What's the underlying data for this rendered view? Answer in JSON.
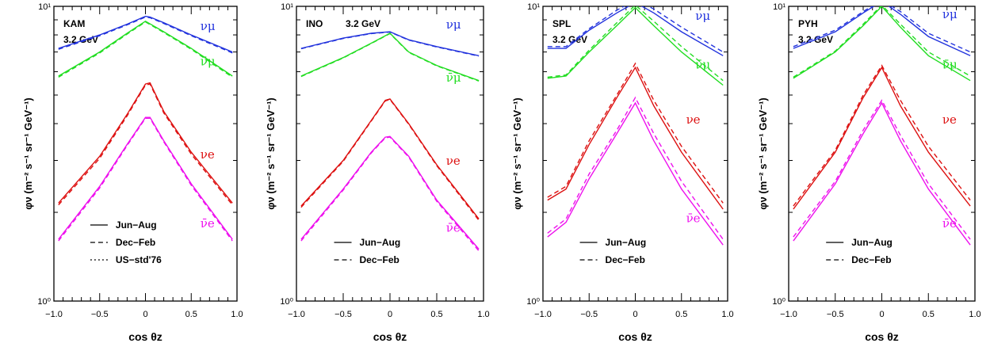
{
  "chart_data": [
    {
      "type": "line",
      "site": "KAM",
      "energy": "3.2 GeV",
      "xlabel": "cos θz",
      "ylabel": "φν (m⁻² s⁻¹ sr⁻¹ GeV⁻¹)",
      "xlim": [
        -1,
        1
      ],
      "ylim": [
        1,
        10
      ],
      "yscale": "log",
      "x_ticks": [
        "−1.0",
        "−0.5",
        "0",
        "0.5",
        "1.0"
      ],
      "y_ticks": [
        "10⁰",
        "10¹"
      ],
      "legend": [
        "Jun−Aug",
        "Dec−Feb",
        "US−std'76"
      ],
      "legend_position": "bottom-center",
      "series": [
        {
          "name": "νμ",
          "color": "#2233dd",
          "style": "solid",
          "x": [
            -0.95,
            -0.5,
            -0.2,
            0,
            0.05,
            0.2,
            0.5,
            0.95
          ],
          "y": [
            7.2,
            8.0,
            8.7,
            9.25,
            9.2,
            8.8,
            8.0,
            7.0
          ]
        },
        {
          "name": "νμ",
          "color": "#2233dd",
          "style": "dashed",
          "x": [
            -0.95,
            -0.5,
            -0.2,
            0,
            0.05,
            0.2,
            0.5,
            0.95
          ],
          "y": [
            7.15,
            7.95,
            8.65,
            9.2,
            9.15,
            8.75,
            7.95,
            6.95
          ]
        },
        {
          "name": "ν̄μ",
          "color": "#22dd22",
          "style": "solid",
          "x": [
            -0.95,
            -0.5,
            -0.2,
            0,
            0.2,
            0.5,
            0.95
          ],
          "y": [
            5.8,
            7.0,
            8.1,
            8.9,
            8.2,
            7.2,
            5.8
          ]
        },
        {
          "name": "ν̄μ",
          "color": "#22dd22",
          "style": "dashed",
          "x": [
            -0.95,
            -0.5,
            -0.2,
            0,
            0.2,
            0.5,
            0.95
          ],
          "y": [
            5.75,
            6.95,
            8.05,
            8.85,
            8.15,
            7.15,
            5.75
          ]
        },
        {
          "name": "νe",
          "color": "#dd1111",
          "style": "solid",
          "x": [
            -0.95,
            -0.5,
            -0.2,
            0,
            0.05,
            0.2,
            0.5,
            0.95
          ],
          "y": [
            2.15,
            3.1,
            4.3,
            5.45,
            5.5,
            4.4,
            3.2,
            2.15
          ]
        },
        {
          "name": "νe",
          "color": "#dd1111",
          "style": "dashed",
          "x": [
            -0.95,
            -0.5,
            -0.2,
            0,
            0.05,
            0.2,
            0.5,
            0.95
          ],
          "y": [
            2.12,
            3.05,
            4.25,
            5.4,
            5.45,
            4.35,
            3.15,
            2.12
          ]
        },
        {
          "name": "ν̄e",
          "color": "#ee11ee",
          "style": "solid",
          "x": [
            -0.95,
            -0.5,
            -0.2,
            0,
            0.05,
            0.2,
            0.5,
            0.95
          ],
          "y": [
            1.62,
            2.45,
            3.4,
            4.2,
            4.2,
            3.5,
            2.5,
            1.62
          ]
        },
        {
          "name": "ν̄e",
          "color": "#ee11ee",
          "style": "dashed",
          "x": [
            -0.95,
            -0.5,
            -0.2,
            0,
            0.05,
            0.2,
            0.5,
            0.95
          ],
          "y": [
            1.6,
            2.42,
            3.37,
            4.17,
            4.17,
            3.47,
            2.47,
            1.6
          ]
        }
      ],
      "curve_labels": [
        {
          "text": "νμ",
          "color": "#2233dd",
          "x": 0.6,
          "y": 8.3
        },
        {
          "text": "ν̄μ",
          "color": "#22dd22",
          "x": 0.6,
          "y": 6.3
        },
        {
          "text": "νe",
          "color": "#dd1111",
          "x": 0.6,
          "y": 3.05
        },
        {
          "text": "ν̄e",
          "color": "#ee11ee",
          "x": 0.6,
          "y": 1.78
        }
      ]
    },
    {
      "type": "line",
      "site": "INO",
      "energy": "3.2 GeV",
      "xlabel": "cos θz",
      "ylabel": "φν (m⁻² s⁻¹ sr⁻¹ GeV⁻¹)",
      "xlim": [
        -1,
        1
      ],
      "ylim": [
        1,
        10
      ],
      "yscale": "log",
      "x_ticks": [
        "−1.0",
        "−0.5",
        "0",
        "0.5",
        "1.0"
      ],
      "y_ticks": [
        "10⁰",
        "10¹"
      ],
      "legend": [
        "Jun−Aug",
        "Dec−Feb"
      ],
      "legend_position": "bottom-center",
      "series": [
        {
          "name": "νμ",
          "color": "#2233dd",
          "style": "solid",
          "x": [
            -0.95,
            -0.5,
            -0.2,
            0,
            0.2,
            0.5,
            0.95
          ],
          "y": [
            7.2,
            7.8,
            8.1,
            8.2,
            7.7,
            7.3,
            6.8
          ]
        },
        {
          "name": "νμ",
          "color": "#2233dd",
          "style": "dashed",
          "x": [
            -0.95,
            -0.5,
            -0.2,
            0,
            0.2,
            0.5,
            0.95
          ],
          "y": [
            7.18,
            7.78,
            8.08,
            8.18,
            7.68,
            7.28,
            6.78
          ]
        },
        {
          "name": "ν̄μ",
          "color": "#22dd22",
          "style": "solid",
          "x": [
            -0.95,
            -0.5,
            -0.2,
            0,
            0.2,
            0.5,
            0.95
          ],
          "y": [
            5.8,
            6.7,
            7.5,
            8.1,
            7.0,
            6.3,
            5.6
          ]
        },
        {
          "name": "ν̄μ",
          "color": "#22dd22",
          "style": "dashed",
          "x": [
            -0.95,
            -0.5,
            -0.2,
            0,
            0.2,
            0.5,
            0.95
          ],
          "y": [
            5.78,
            6.68,
            7.48,
            8.08,
            6.98,
            6.28,
            5.58
          ]
        },
        {
          "name": "νe",
          "color": "#dd1111",
          "style": "solid",
          "x": [
            -0.95,
            -0.5,
            -0.2,
            -0.05,
            0,
            0.2,
            0.5,
            0.95
          ],
          "y": [
            2.1,
            3.0,
            4.1,
            4.8,
            4.85,
            4.0,
            2.9,
            1.9
          ]
        },
        {
          "name": "νe",
          "color": "#dd1111",
          "style": "dashed",
          "x": [
            -0.95,
            -0.5,
            -0.2,
            -0.05,
            0,
            0.2,
            0.5,
            0.95
          ],
          "y": [
            2.08,
            2.98,
            4.08,
            4.78,
            4.83,
            3.98,
            2.88,
            1.88
          ]
        },
        {
          "name": "ν̄e",
          "color": "#ee11ee",
          "style": "solid",
          "x": [
            -0.95,
            -0.5,
            -0.2,
            -0.05,
            0,
            0.2,
            0.5,
            0.95
          ],
          "y": [
            1.62,
            2.4,
            3.2,
            3.6,
            3.62,
            3.1,
            2.2,
            1.5
          ]
        },
        {
          "name": "ν̄e",
          "color": "#ee11ee",
          "style": "dashed",
          "x": [
            -0.95,
            -0.5,
            -0.2,
            -0.05,
            0,
            0.2,
            0.5,
            0.95
          ],
          "y": [
            1.6,
            2.38,
            3.18,
            3.58,
            3.6,
            3.08,
            2.18,
            1.48
          ]
        }
      ],
      "curve_labels": [
        {
          "text": "νμ",
          "color": "#2233dd",
          "x": 0.6,
          "y": 8.4
        },
        {
          "text": "ν̄μ",
          "color": "#22dd22",
          "x": 0.6,
          "y": 5.55
        },
        {
          "text": "νe",
          "color": "#dd1111",
          "x": 0.6,
          "y": 2.9
        },
        {
          "text": "ν̄e",
          "color": "#ee11ee",
          "x": 0.6,
          "y": 1.72
        }
      ]
    },
    {
      "type": "line",
      "site": "SPL",
      "energy": "3.2 GeV",
      "xlabel": "cos θz",
      "ylabel": "φν (m⁻² s⁻¹ sr⁻¹ GeV⁻¹)",
      "xlim": [
        -1,
        1
      ],
      "ylim": [
        1,
        10
      ],
      "yscale": "log",
      "x_ticks": [
        "−1.0",
        "−0.5",
        "0",
        "0.5",
        "1.0"
      ],
      "y_ticks": [
        "10⁰",
        "10¹"
      ],
      "legend": [
        "Jun−Aug",
        "Dec−Feb"
      ],
      "legend_position": "bottom-center",
      "series": [
        {
          "name": "νμ",
          "color": "#2233dd",
          "style": "solid",
          "x": [
            -0.95,
            -0.75,
            -0.5,
            -0.2,
            0,
            0.2,
            0.5,
            0.95
          ],
          "y": [
            7.2,
            7.2,
            8.3,
            9.5,
            10.3,
            9.5,
            8.2,
            6.8
          ]
        },
        {
          "name": "νμ",
          "color": "#2233dd",
          "style": "dashed",
          "x": [
            -0.95,
            -0.75,
            -0.5,
            -0.2,
            0,
            0.2,
            0.5,
            0.95
          ],
          "y": [
            7.3,
            7.3,
            8.4,
            9.7,
            10.5,
            9.8,
            8.5,
            7.0
          ]
        },
        {
          "name": "ν̄μ",
          "color": "#22dd22",
          "style": "solid",
          "x": [
            -0.95,
            -0.75,
            -0.5,
            -0.2,
            0,
            0.2,
            0.5,
            0.95
          ],
          "y": [
            5.7,
            5.8,
            7.0,
            8.6,
            9.9,
            8.6,
            7.0,
            5.4
          ]
        },
        {
          "name": "ν̄μ",
          "color": "#22dd22",
          "style": "dashed",
          "x": [
            -0.95,
            -0.75,
            -0.5,
            -0.2,
            0,
            0.2,
            0.5,
            0.95
          ],
          "y": [
            5.75,
            5.85,
            7.1,
            8.8,
            10.1,
            8.9,
            7.3,
            5.6
          ]
        },
        {
          "name": "νe",
          "color": "#dd1111",
          "style": "solid",
          "x": [
            -0.95,
            -0.75,
            -0.5,
            -0.2,
            0,
            0.2,
            0.5,
            0.95
          ],
          "y": [
            2.2,
            2.4,
            3.4,
            4.9,
            6.2,
            4.6,
            3.2,
            2.05
          ]
        },
        {
          "name": "νe",
          "color": "#dd1111",
          "style": "dashed",
          "x": [
            -0.95,
            -0.75,
            -0.5,
            -0.2,
            0,
            0.2,
            0.5,
            0.95
          ],
          "y": [
            2.25,
            2.45,
            3.5,
            5.0,
            6.4,
            4.8,
            3.35,
            2.15
          ]
        },
        {
          "name": "ν̄e",
          "color": "#ee11ee",
          "style": "solid",
          "x": [
            -0.95,
            -0.75,
            -0.5,
            -0.2,
            0,
            0.2,
            0.5,
            0.95
          ],
          "y": [
            1.65,
            1.85,
            2.6,
            3.7,
            4.7,
            3.5,
            2.4,
            1.55
          ]
        },
        {
          "name": "ν̄e",
          "color": "#ee11ee",
          "style": "dashed",
          "x": [
            -0.95,
            -0.75,
            -0.5,
            -0.2,
            0,
            0.2,
            0.5,
            0.95
          ],
          "y": [
            1.7,
            1.9,
            2.7,
            3.8,
            4.9,
            3.7,
            2.55,
            1.62
          ]
        }
      ],
      "curve_labels": [
        {
          "text": "νμ",
          "color": "#2233dd",
          "x": 0.65,
          "y": 9.0
        },
        {
          "text": "ν̄μ",
          "color": "#22dd22",
          "x": 0.65,
          "y": 6.15
        },
        {
          "text": "νe",
          "color": "#dd1111",
          "x": 0.55,
          "y": 4.0
        },
        {
          "text": "ν̄e",
          "color": "#ee11ee",
          "x": 0.55,
          "y": 1.85
        }
      ]
    },
    {
      "type": "line",
      "site": "PYH",
      "energy": "3.2 GeV",
      "xlabel": "cos θz",
      "ylabel": "φν (m⁻² s⁻¹ sr⁻¹ GeV⁻¹)",
      "xlim": [
        -1,
        1
      ],
      "ylim": [
        1,
        10
      ],
      "yscale": "log",
      "x_ticks": [
        "−1.0",
        "−0.5",
        "0",
        "0.5",
        "1.0"
      ],
      "y_ticks": [
        "10⁰",
        "10¹"
      ],
      "legend": [
        "Jun−Aug",
        "Dec−Feb"
      ],
      "legend_position": "bottom-center",
      "series": [
        {
          "name": "νμ",
          "color": "#2233dd",
          "style": "solid",
          "x": [
            -0.95,
            -0.5,
            -0.2,
            0,
            0.2,
            0.5,
            0.95
          ],
          "y": [
            7.2,
            8.2,
            9.5,
            10.4,
            9.4,
            7.9,
            6.8
          ]
        },
        {
          "name": "νμ",
          "color": "#2233dd",
          "style": "dashed",
          "x": [
            -0.95,
            -0.5,
            -0.2,
            0,
            0.2,
            0.5,
            0.95
          ],
          "y": [
            7.3,
            8.3,
            9.6,
            10.5,
            9.6,
            8.1,
            7.0
          ]
        },
        {
          "name": "ν̄μ",
          "color": "#22dd22",
          "style": "solid",
          "x": [
            -0.95,
            -0.5,
            -0.2,
            0,
            0.2,
            0.5,
            0.95
          ],
          "y": [
            5.7,
            7.0,
            8.6,
            10.0,
            8.5,
            6.8,
            5.6
          ]
        },
        {
          "name": "ν̄μ",
          "color": "#22dd22",
          "style": "dashed",
          "x": [
            -0.95,
            -0.5,
            -0.2,
            0,
            0.2,
            0.5,
            0.95
          ],
          "y": [
            5.75,
            7.05,
            8.7,
            10.1,
            8.7,
            7.0,
            5.8
          ]
        },
        {
          "name": "νe",
          "color": "#dd1111",
          "style": "solid",
          "x": [
            -0.95,
            -0.5,
            -0.2,
            0,
            0.2,
            0.5,
            0.95
          ],
          "y": [
            2.05,
            3.2,
            4.9,
            6.2,
            4.6,
            3.2,
            2.1
          ]
        },
        {
          "name": "νe",
          "color": "#dd1111",
          "style": "dashed",
          "x": [
            -0.95,
            -0.5,
            -0.2,
            0,
            0.2,
            0.5,
            0.95
          ],
          "y": [
            2.1,
            3.25,
            5.0,
            6.3,
            4.8,
            3.35,
            2.2
          ]
        },
        {
          "name": "ν̄e",
          "color": "#ee11ee",
          "style": "solid",
          "x": [
            -0.95,
            -0.5,
            -0.2,
            0,
            0.2,
            0.5,
            0.95
          ],
          "y": [
            1.6,
            2.5,
            3.7,
            4.7,
            3.5,
            2.4,
            1.55
          ]
        },
        {
          "name": "ν̄e",
          "color": "#ee11ee",
          "style": "dashed",
          "x": [
            -0.95,
            -0.5,
            -0.2,
            0,
            0.2,
            0.5,
            0.95
          ],
          "y": [
            1.65,
            2.55,
            3.8,
            4.8,
            3.65,
            2.5,
            1.62
          ]
        }
      ],
      "curve_labels": [
        {
          "text": "νμ",
          "color": "#2233dd",
          "x": 0.65,
          "y": 9.1
        },
        {
          "text": "ν̄μ",
          "color": "#22dd22",
          "x": 0.65,
          "y": 6.15
        },
        {
          "text": "νe",
          "color": "#dd1111",
          "x": 0.65,
          "y": 4.0
        },
        {
          "text": "ν̄e",
          "color": "#ee11ee",
          "x": 0.65,
          "y": 1.78
        }
      ]
    }
  ]
}
